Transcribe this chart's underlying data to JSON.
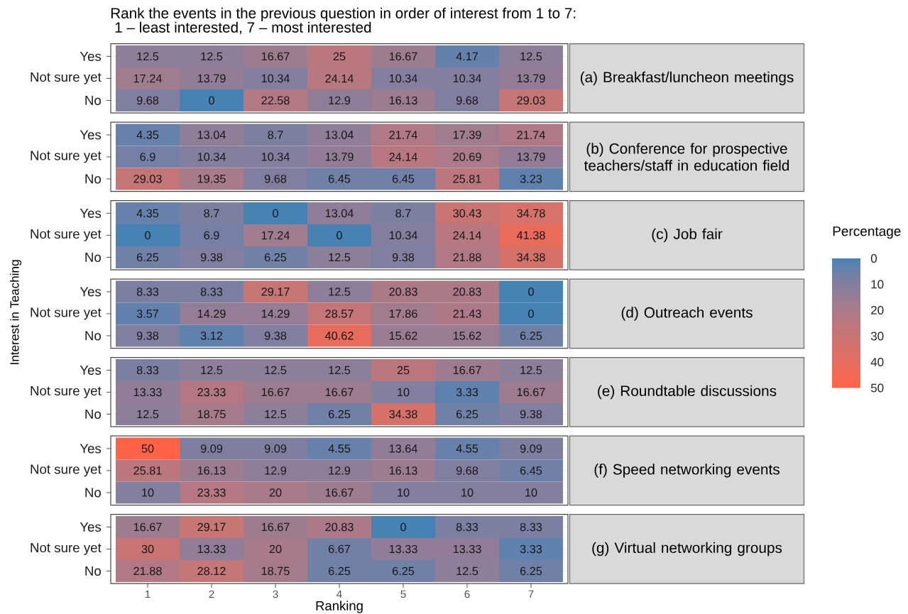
{
  "chart_data": [
    {
      "type": "heatmap",
      "annotations": [
        "(a) Breakfast/luncheon meetings",
        "Rank the events in the previous question in order of interest from 1 to 7:",
        "1 – least interested, 7 – most interested"
      ],
      "categories": [
        "1",
        "2",
        "3",
        "4",
        "5",
        "6",
        "7"
      ],
      "y_categories": [
        "Yes",
        "Not sure yet",
        "No"
      ],
      "cells": [
        [
          12.5,
          12.5,
          16.67,
          25,
          16.67,
          4.17,
          12.5
        ],
        [
          17.24,
          13.79,
          10.34,
          24.14,
          10.34,
          10.34,
          13.79
        ],
        [
          9.68,
          0,
          22.58,
          12.9,
          16.13,
          9.68,
          29.03
        ]
      ],
      "data_labels": true,
      "grid": true,
      "tick_labels": "y"
    },
    {
      "type": "heatmap",
      "annotations": [
        "(b) Conference for prospective teachers/staff in education field"
      ],
      "categories": [
        "1",
        "2",
        "3",
        "4",
        "5",
        "6",
        "7"
      ],
      "y_categories": [
        "Yes",
        "Not sure yet",
        "No"
      ],
      "cells": [
        [
          4.35,
          13.04,
          8.7,
          13.04,
          21.74,
          17.39,
          21.74
        ],
        [
          6.9,
          10.34,
          10.34,
          13.79,
          24.14,
          20.69,
          13.79
        ],
        [
          29.03,
          19.35,
          9.68,
          6.45,
          6.45,
          25.81,
          3.23
        ]
      ],
      "data_labels": true,
      "grid": true,
      "tick_labels": "y"
    },
    {
      "type": "heatmap",
      "annotations": [
        "(c) Job fair"
      ],
      "categories": [
        "1",
        "2",
        "3",
        "4",
        "5",
        "6",
        "7"
      ],
      "y_categories": [
        "Yes",
        "Not sure yet",
        "No"
      ],
      "cells": [
        [
          4.35,
          8.7,
          0,
          13.04,
          8.7,
          30.43,
          34.78
        ],
        [
          0,
          6.9,
          17.24,
          0,
          10.34,
          24.14,
          41.38
        ],
        [
          6.25,
          9.38,
          6.25,
          12.5,
          9.38,
          21.88,
          34.38
        ]
      ],
      "data_labels": true,
      "grid": true,
      "tick_labels": "y"
    },
    {
      "type": "heatmap",
      "annotations": [
        "(d) Outreach events"
      ],
      "ylabel": "Interest in Teaching",
      "clabel": "Percentage",
      "clim": [
        0,
        50
      ],
      "cticks": [
        0,
        10,
        20,
        30,
        40,
        50
      ],
      "categories": [
        "1",
        "2",
        "3",
        "4",
        "5",
        "6",
        "7"
      ],
      "y_categories": [
        "Yes",
        "Not sure yet",
        "No"
      ],
      "cells": [
        [
          8.33,
          8.33,
          29.17,
          12.5,
          20.83,
          20.83,
          0
        ],
        [
          3.57,
          14.29,
          14.29,
          28.57,
          17.86,
          21.43,
          0
        ],
        [
          9.38,
          3.12,
          9.38,
          40.62,
          15.62,
          15.62,
          6.25
        ]
      ],
      "data_labels": true,
      "grid": true,
      "tick_labels": "y"
    },
    {
      "type": "heatmap",
      "annotations": [
        "(e) Roundtable discussions"
      ],
      "categories": [
        "1",
        "2",
        "3",
        "4",
        "5",
        "6",
        "7"
      ],
      "y_categories": [
        "Yes",
        "Not sure yet",
        "No"
      ],
      "cells": [
        [
          8.33,
          12.5,
          12.5,
          12.5,
          25,
          16.67,
          12.5
        ],
        [
          13.33,
          23.33,
          16.67,
          16.67,
          10,
          3.33,
          16.67
        ],
        [
          12.5,
          18.75,
          12.5,
          6.25,
          34.38,
          6.25,
          9.38
        ]
      ],
      "data_labels": true,
      "grid": true,
      "tick_labels": "y"
    },
    {
      "type": "heatmap",
      "annotations": [
        "(f) Speed networking events"
      ],
      "categories": [
        "1",
        "2",
        "3",
        "4",
        "5",
        "6",
        "7"
      ],
      "y_categories": [
        "Yes",
        "Not sure yet",
        "No"
      ],
      "cells": [
        [
          50,
          9.09,
          9.09,
          4.55,
          13.64,
          4.55,
          9.09
        ],
        [
          25.81,
          16.13,
          12.9,
          12.9,
          16.13,
          9.68,
          6.45
        ],
        [
          10,
          23.33,
          20,
          16.67,
          10,
          10,
          10
        ]
      ],
      "data_labels": true,
      "grid": true,
      "tick_labels": "y"
    },
    {
      "type": "heatmap",
      "annotations": [
        "(g) Virtual networking groups"
      ],
      "xlabel": "Ranking",
      "categories": [
        "1",
        "2",
        "3",
        "4",
        "5",
        "6",
        "7"
      ],
      "y_categories": [
        "Yes",
        "Not sure yet",
        "No"
      ],
      "cells": [
        [
          16.67,
          29.17,
          16.67,
          20.83,
          0,
          8.33,
          8.33
        ],
        [
          30,
          13.33,
          20,
          6.67,
          13.33,
          13.33,
          3.33
        ],
        [
          21.88,
          28.12,
          18.75,
          6.25,
          6.25,
          12.5,
          6.25
        ]
      ],
      "data_labels": true,
      "grid": true
    }
  ]
}
